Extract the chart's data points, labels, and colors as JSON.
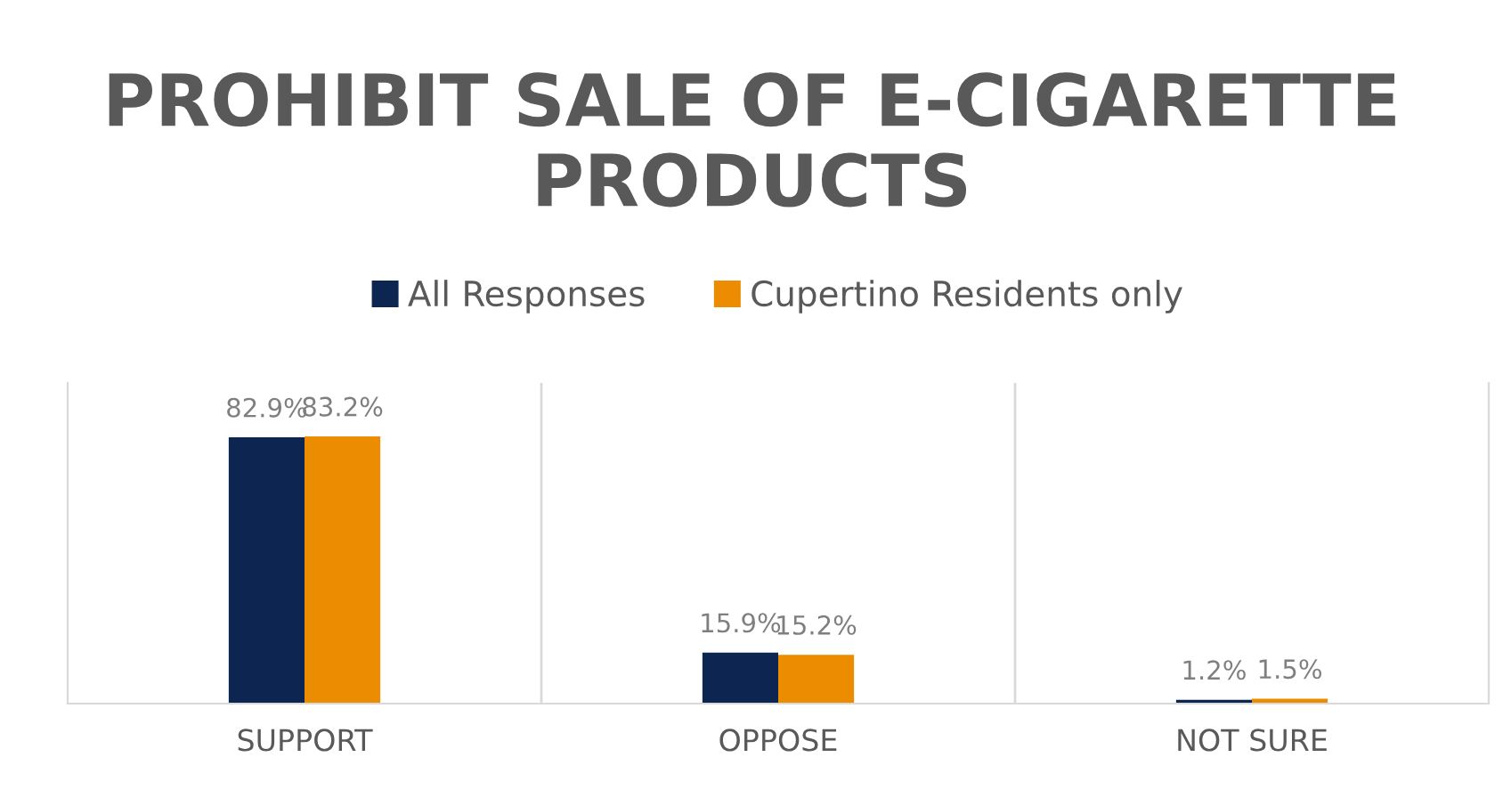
{
  "chart_data": {
    "type": "bar",
    "title": "PROHIBIT SALE OF E-CIGARETTE PRODUCTS",
    "categories": [
      "SUPPORT",
      "OPPOSE",
      "NOT SURE"
    ],
    "series": [
      {
        "name": "All Responses",
        "color": "#0c2551",
        "values": [
          82.9,
          15.9,
          1.2
        ],
        "value_labels": [
          "82.9%",
          "15.9%",
          "1.2%"
        ]
      },
      {
        "name": "Cupertino Residents only",
        "color": "#ec8c00",
        "values": [
          83.2,
          15.2,
          1.5
        ],
        "value_labels": [
          "83.2%",
          "15.2%",
          "1.5%"
        ]
      }
    ],
    "legend": "top",
    "grid": "x"
  }
}
